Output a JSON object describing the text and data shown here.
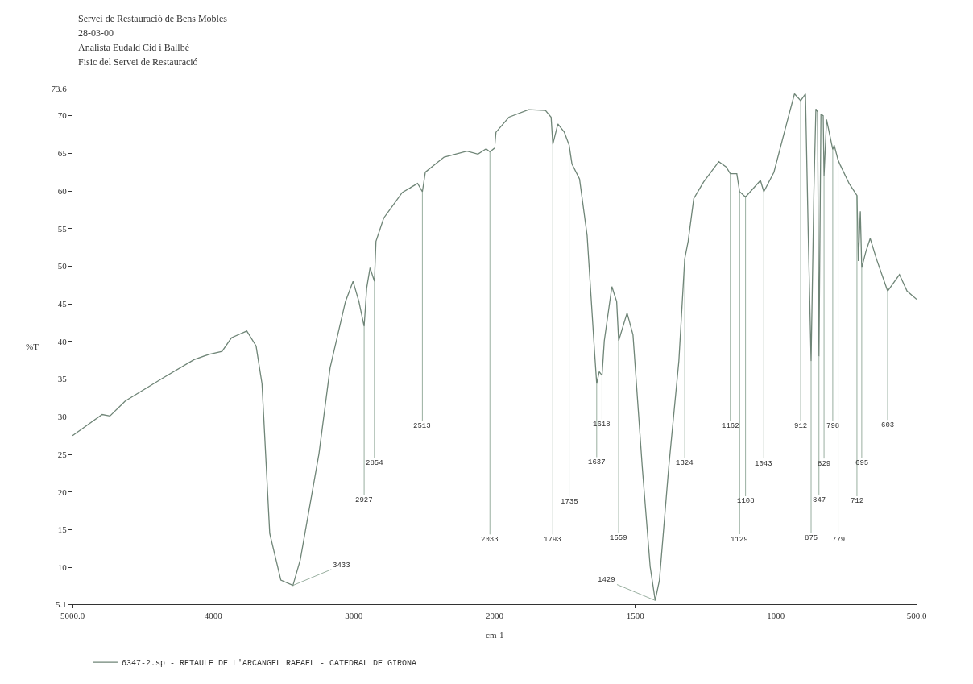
{
  "chart_data": [
    {
      "type": "line",
      "title": "Servei de Restauració de Bens Mobles",
      "annotations": [
        "28-03-00",
        "Analista Eudald Cid i Ballbé",
        "Fisic del Servei de Restauració",
        {
          "text": "3433",
          "x": 3433,
          "y": 7.6
        },
        {
          "text": "2927",
          "x": 2927,
          "y": 42
        },
        {
          "text": "2854",
          "x": 2854,
          "y": 48
        },
        {
          "text": "2513",
          "x": 2513,
          "y": 59.9
        },
        {
          "text": "2033",
          "x": 2033,
          "y": 65.2
        }
      ],
      "xlabel": "cm-1",
      "ylabel": "%T",
      "legend": "bottom",
      "xlim": [
        5000,
        2000
      ],
      "xticks": [
        {
          "value": 5000,
          "label": "5000.0"
        },
        4000,
        3000
      ],
      "ylim": [
        5.1,
        73.6
      ],
      "yticks": [
        5.1,
        10,
        15,
        20,
        25,
        30,
        35,
        40,
        45,
        50,
        55,
        60,
        65,
        70,
        73.6
      ],
      "series": [
        {
          "name": "6347-2.sp - RETAULE DE L'ARCANGEL RAFAEL - CATEDRAL DE GIRONA",
          "color": "#6f8577",
          "x": [
            5000,
            4789,
            4734,
            4625,
            4353,
            4136,
            4030,
            3937,
            3870,
            3761,
            3695,
            3653,
            3598,
            3519,
            3433,
            3381,
            3248,
            3169,
            3060,
            3006,
            2964,
            2927,
            2909,
            2885,
            2854,
            2843,
            2788,
            2656,
            2547,
            2513,
            2492,
            2359,
            2196,
            2118,
            2060,
            2033,
            2000
          ],
          "values": [
            27.5,
            30.3,
            30.1,
            32.1,
            35.2,
            37.6,
            38.3,
            38.7,
            40.5,
            41.4,
            39.4,
            34.4,
            14.5,
            8.3,
            7.6,
            11,
            25.1,
            36.5,
            45.3,
            48,
            45.3,
            42,
            47.1,
            49.8,
            48,
            53.3,
            56.4,
            59.8,
            61,
            59.9,
            62.5,
            64.5,
            65.3,
            64.9,
            65.6,
            65.2,
            65.7
          ]
        }
      ]
    },
    {
      "type": "line",
      "tick_labels": "x",
      "annotations": [
        {
          "text": "1793",
          "x": 1793,
          "y": 66.2
        },
        {
          "text": "1735",
          "x": 1735,
          "y": 66.1
        },
        {
          "text": "1637",
          "x": 1637,
          "y": 34.4
        },
        {
          "text": "1618",
          "x": 1618,
          "y": 35.5
        },
        {
          "text": "1559",
          "x": 1559,
          "y": 40.1
        },
        {
          "text": "1429",
          "x": 1429,
          "y": 5.6
        },
        {
          "text": "1324",
          "x": 1324,
          "y": 51
        },
        {
          "text": "1162",
          "x": 1162,
          "y": 62.3
        },
        {
          "text": "1129",
          "x": 1129,
          "y": 59.9
        },
        {
          "text": "1108",
          "x": 1108,
          "y": 59.2
        },
        {
          "text": "1043",
          "x": 1043,
          "y": 59.9
        },
        {
          "text": "912",
          "x": 912,
          "y": 72
        },
        {
          "text": "875",
          "x": 875,
          "y": 37.4
        },
        {
          "text": "847",
          "x": 847,
          "y": 38
        },
        {
          "text": "829",
          "x": 829,
          "y": 62
        },
        {
          "text": "798",
          "x": 798,
          "y": 65.5
        },
        {
          "text": "779",
          "x": 779,
          "y": 64.1
        },
        {
          "text": "712",
          "x": 712,
          "y": 59.4
        },
        {
          "text": "695",
          "x": 695,
          "y": 49.8
        },
        {
          "text": "603",
          "x": 603,
          "y": 46.7
        }
      ],
      "xlim": [
        2000,
        500
      ],
      "xticks": [
        2000,
        1500,
        1000,
        {
          "value": 500,
          "label": "500.0"
        }
      ],
      "ylim": [
        5.1,
        73.6
      ],
      "series": [
        {
          "color": "#6f8577",
          "x": [
            2000,
            1995,
            1949,
            1879,
            1819,
            1799,
            1793,
            1775,
            1752,
            1735,
            1725,
            1698,
            1671,
            1644,
            1637,
            1628,
            1618,
            1610,
            1583,
            1566,
            1559,
            1529,
            1508,
            1475,
            1447,
            1429,
            1414,
            1381,
            1345,
            1324,
            1312,
            1292,
            1257,
            1203,
            1177,
            1162,
            1139,
            1129,
            1108,
            1055,
            1043,
            1007,
            961,
            934,
            912,
            895,
            885,
            875,
            865,
            858,
            852,
            847,
            840,
            832,
            829,
            820,
            798,
            793,
            779,
            772,
            740,
            712,
            707,
            700,
            695,
            680,
            665,
            643,
            603,
            561,
            534,
            500
          ],
          "values": [
            65.7,
            67.8,
            69.8,
            70.8,
            70.7,
            69.8,
            66.2,
            68.9,
            67.8,
            66.1,
            63.6,
            61.6,
            54.1,
            38.3,
            34.4,
            36,
            35.5,
            40.1,
            47.3,
            45.3,
            40.1,
            43.8,
            40.9,
            23.3,
            10.1,
            5.6,
            8.3,
            23.3,
            37.4,
            51,
            53.3,
            59,
            61.2,
            63.9,
            63.2,
            62.3,
            62.3,
            59.9,
            59.2,
            61.4,
            59.9,
            62.5,
            69.1,
            72.9,
            72,
            72.9,
            54,
            37.4,
            60,
            70.9,
            70.5,
            38,
            70.2,
            70,
            62,
            69.5,
            65.5,
            66.1,
            64.1,
            63.5,
            61,
            59.4,
            50.7,
            57.3,
            49.8,
            52,
            53.7,
            51,
            46.7,
            48.9,
            46.7,
            45.6
          ]
        }
      ]
    }
  ]
}
